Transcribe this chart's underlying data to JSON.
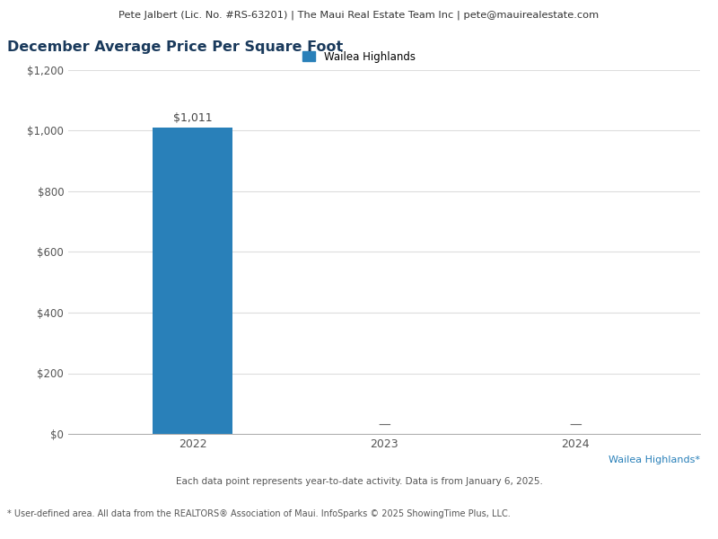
{
  "header_text": "Pete Jalbert (Lic. No. #RS-63201) | The Maui Real Estate Team Inc | pete@mauirealestate.com",
  "title": "December Average Price Per Square Foot",
  "legend_label": "Wailea Highlands",
  "categories": [
    "2022",
    "2023",
    "2024"
  ],
  "values": [
    1011,
    0,
    0
  ],
  "bar_color": "#2980b9",
  "ylim": [
    0,
    1200
  ],
  "yticks": [
    0,
    200,
    400,
    600,
    800,
    1000,
    1200
  ],
  "ytick_labels": [
    "$0",
    "$200",
    "$400",
    "$600",
    "$800",
    "$1,000",
    "$1,200"
  ],
  "value_label": "$1,011",
  "dash_label": "—",
  "footer_line1": "Wailea Highlands*",
  "footer_line2": "Each data point represents year-to-date activity. Data is from January 6, 2025.",
  "footer_line3": "* User-defined area. All data from the REALTORS® Association of Maui. InfoSparks © 2025 ShowingTime Plus, LLC.",
  "header_bg": "#eeeeee",
  "title_color": "#1a3a5c",
  "legend_square_color": "#2980b9",
  "footer_color_highlight": "#2980b9",
  "footer_color_normal": "#555555",
  "grid_color": "#dddddd",
  "background_color": "#ffffff",
  "bar_width": 0.42
}
